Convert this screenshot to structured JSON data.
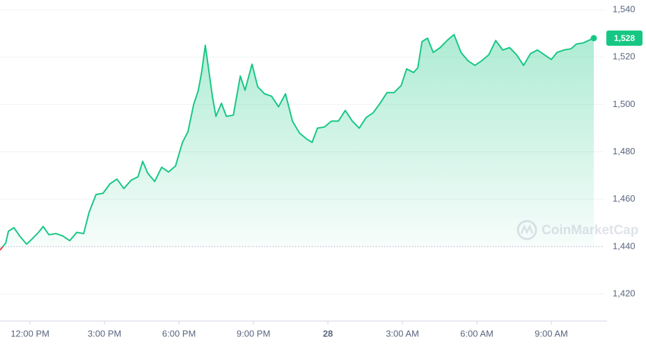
{
  "chart_data": {
    "type": "line",
    "x": [
      -1.21,
      -0.98,
      -0.87,
      -0.65,
      -0.42,
      -0.14,
      0.06,
      0.34,
      0.53,
      0.76,
      1.04,
      1.32,
      1.6,
      1.88,
      2.16,
      2.38,
      2.66,
      2.94,
      3.22,
      3.5,
      3.78,
      4.07,
      4.35,
      4.54,
      4.74,
      5.02,
      5.3,
      5.58,
      5.86,
      6.14,
      6.36,
      6.59,
      6.78,
      6.92,
      7.06,
      7.2,
      7.35,
      7.49,
      7.71,
      7.91,
      8.19,
      8.47,
      8.66,
      8.94,
      9.17,
      9.45,
      9.73,
      10.01,
      10.29,
      10.57,
      10.85,
      11.13,
      11.36,
      11.58,
      11.86,
      12.14,
      12.42,
      12.7,
      12.98,
      13.26,
      13.54,
      13.82,
      14.1,
      14.38,
      14.66,
      14.95,
      15.17,
      15.45,
      15.62,
      15.79,
      16.01,
      16.24,
      16.52,
      16.8,
      17.08,
      17.36,
      17.64,
      17.92,
      18.2,
      18.48,
      18.76,
      19.04,
      19.32,
      19.6,
      19.88,
      20.16,
      20.44,
      20.72,
      21.0,
      21.23,
      21.51,
      21.79,
      22.01,
      22.29,
      22.49,
      22.71
    ],
    "series": [
      {
        "color": "#16c784",
        "values": [
          1438.5,
          1441.5,
          1446.5,
          1448,
          1444.5,
          1441,
          1443,
          1446,
          1448.5,
          1445,
          1445.5,
          1444.5,
          1442.5,
          1446,
          1445.5,
          1454.5,
          1462,
          1462.5,
          1466.5,
          1468.5,
          1464.5,
          1468,
          1469.5,
          1476,
          1471,
          1467.5,
          1473.5,
          1471.5,
          1474,
          1484,
          1488.5,
          1500,
          1506,
          1514,
          1525,
          1514.5,
          1503,
          1495,
          1500.5,
          1495,
          1495.5,
          1512,
          1506,
          1517,
          1507.5,
          1504.5,
          1503.5,
          1499,
          1504.5,
          1493,
          1488,
          1485.5,
          1484,
          1490,
          1490.5,
          1493,
          1493,
          1497.5,
          1493,
          1490,
          1494.5,
          1496.5,
          1500.5,
          1505,
          1505,
          1508,
          1515,
          1513.5,
          1515.5,
          1526.5,
          1528,
          1522,
          1524,
          1527,
          1529.5,
          1522,
          1518.5,
          1516.5,
          1518.5,
          1521,
          1527,
          1523,
          1524,
          1521,
          1516.5,
          1521.5,
          1523,
          1521,
          1519,
          1522,
          1523,
          1523.5,
          1525.5,
          1526,
          1527,
          1528
        ]
      }
    ],
    "below_color": "#ea3943",
    "reference_line": 1440,
    "current_price": {
      "value": 1528,
      "label": "1,528"
    },
    "watermark": "CoinMarketCap",
    "xlim": [
      -1.21,
      22.71
    ],
    "xticks": [
      {
        "value": 0,
        "label": "12:00 PM"
      },
      {
        "value": 3,
        "label": "3:00 PM"
      },
      {
        "value": 6,
        "label": "6:00 PM"
      },
      {
        "value": 9,
        "label": "9:00 PM"
      },
      {
        "value": 12,
        "label": "28"
      },
      {
        "value": 15,
        "label": "3:00 AM"
      },
      {
        "value": 18,
        "label": "6:00 AM"
      },
      {
        "value": 21,
        "label": "9:00 AM"
      }
    ],
    "ylim": [
      1420,
      1540
    ],
    "yticks": [
      {
        "value": 1420,
        "label": "1,420"
      },
      {
        "value": 1440,
        "label": "1,440"
      },
      {
        "value": 1460,
        "label": "1,460"
      },
      {
        "value": 1480,
        "label": "1,480"
      },
      {
        "value": 1500,
        "label": "1,500"
      },
      {
        "value": 1520,
        "label": "1,520"
      },
      {
        "value": 1540,
        "label": "1,540"
      }
    ],
    "grid": true
  }
}
